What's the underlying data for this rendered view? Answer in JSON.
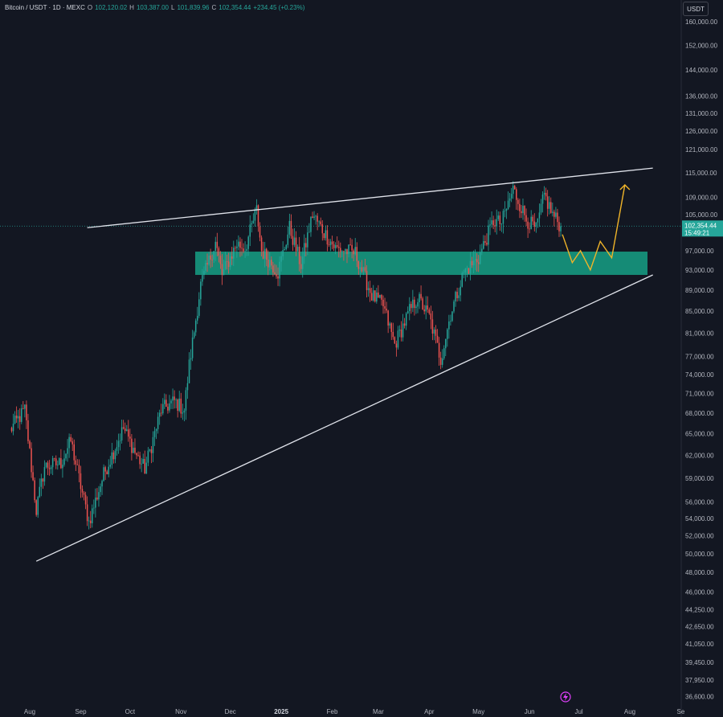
{
  "header": {
    "symbol": "Bitcoin / USDT · 1D · MEXC",
    "o_label": "O",
    "o_value": "102,120.02",
    "h_label": "H",
    "h_value": "103,387.00",
    "l_label": "L",
    "l_value": "101,839.96",
    "c_label": "C",
    "c_value": "102,354.44",
    "change": "+234.45 (+0.23%)",
    "quote_currency": "USDT"
  },
  "price_badge": {
    "price": "102,354.44",
    "countdown": "15:49:21"
  },
  "colors": {
    "background": "#131722",
    "up": "#26a69a",
    "down": "#ef5350",
    "zone": "#16a085",
    "trendline": "#e0e3eb",
    "projection": "#f0b429",
    "axis_text": "#b2b5be"
  },
  "chart_data": {
    "type": "candlestick",
    "symbol": "BTC/USDT",
    "interval": "1D",
    "x_ticks": [
      "Aug",
      "Sep",
      "Oct",
      "Nov",
      "Dec",
      "2025",
      "Feb",
      "Mar",
      "Apr",
      "May",
      "Jun",
      "Jul",
      "Aug",
      "Se"
    ],
    "y_scale": "log",
    "y_ticks": [
      "160,000.00",
      "152,000.00",
      "144,000.00",
      "136,000.00",
      "131,000.00",
      "126,000.00",
      "121,000.00",
      "115,000.00",
      "109,000.00",
      "105,000.00",
      "97,000.00",
      "93,000.00",
      "89,000.00",
      "85,000.00",
      "81,000.00",
      "77,000.00",
      "74,000.00",
      "71,000.00",
      "68,000.00",
      "65,000.00",
      "62,000.00",
      "59,000.00",
      "56,000.00",
      "54,000.00",
      "52,000.00",
      "50,000.00",
      "48,000.00",
      "46,000.00",
      "44,250.00",
      "42,650.00",
      "41,050.00",
      "39,450.00",
      "37,950.00",
      "36,600.00"
    ],
    "ylim": [
      36000,
      166000
    ],
    "last_price": 102354.44,
    "close_series": [
      [
        "2024-07-20",
        65500
      ],
      [
        "2024-07-29",
        68500
      ],
      [
        "2024-08-05",
        55000
      ],
      [
        "2024-08-10",
        60500
      ],
      [
        "2024-08-20",
        61000
      ],
      [
        "2024-08-26",
        64000
      ],
      [
        "2024-09-01",
        58000
      ],
      [
        "2024-09-06",
        53600
      ],
      [
        "2024-09-15",
        59500
      ],
      [
        "2024-09-27",
        65800
      ],
      [
        "2024-10-05",
        62000
      ],
      [
        "2024-10-10",
        60200
      ],
      [
        "2024-10-20",
        68500
      ],
      [
        "2024-10-28",
        69800
      ],
      [
        "2024-11-03",
        68500
      ],
      [
        "2024-11-06",
        75500
      ],
      [
        "2024-11-13",
        90000
      ],
      [
        "2024-11-22",
        98800
      ],
      [
        "2024-11-26",
        92000
      ],
      [
        "2024-12-05",
        98500
      ],
      [
        "2024-12-10",
        97500
      ],
      [
        "2024-12-17",
        106000
      ],
      [
        "2024-12-20",
        97000
      ],
      [
        "2024-12-30",
        92500
      ],
      [
        "2025-01-06",
        102000
      ],
      [
        "2025-01-13",
        94000
      ],
      [
        "2025-01-20",
        105000
      ],
      [
        "2025-01-27",
        101000
      ],
      [
        "2025-02-03",
        97500
      ],
      [
        "2025-02-15",
        96500
      ],
      [
        "2025-02-25",
        88000
      ],
      [
        "2025-03-04",
        86000
      ],
      [
        "2025-03-11",
        79000
      ],
      [
        "2025-03-20",
        85000
      ],
      [
        "2025-03-25",
        87500
      ],
      [
        "2025-04-01",
        84000
      ],
      [
        "2025-04-08",
        76500
      ],
      [
        "2025-04-14",
        84500
      ],
      [
        "2025-04-22",
        92500
      ],
      [
        "2025-05-01",
        95500
      ],
      [
        "2025-05-10",
        103500
      ],
      [
        "2025-05-15",
        103000
      ],
      [
        "2025-05-22",
        111000
      ],
      [
        "2025-05-30",
        104000
      ],
      [
        "2025-06-05",
        101500
      ],
      [
        "2025-06-10",
        109500
      ],
      [
        "2025-06-15",
        105000
      ],
      [
        "2025-06-20",
        102354
      ]
    ],
    "annotations": {
      "support_zone": {
        "from": "2024-11-26",
        "to": "2025-08-01",
        "low": 92000,
        "high": 96800
      },
      "upper_trendline": [
        [
          "2024-09-05",
          102000
        ],
        [
          "2025-08-15",
          116200
        ]
      ],
      "lower_trendline": [
        [
          "2024-08-05",
          49200
        ],
        [
          "2025-08-15",
          92000
        ]
      ],
      "projection_path": [
        [
          "2025-06-21",
          100500
        ],
        [
          "2025-06-27",
          94500
        ],
        [
          "2025-07-02",
          97000
        ],
        [
          "2025-07-08",
          93000
        ],
        [
          "2025-07-14",
          99000
        ],
        [
          "2025-07-21",
          95500
        ],
        [
          "2025-07-29",
          112000
        ]
      ]
    }
  }
}
